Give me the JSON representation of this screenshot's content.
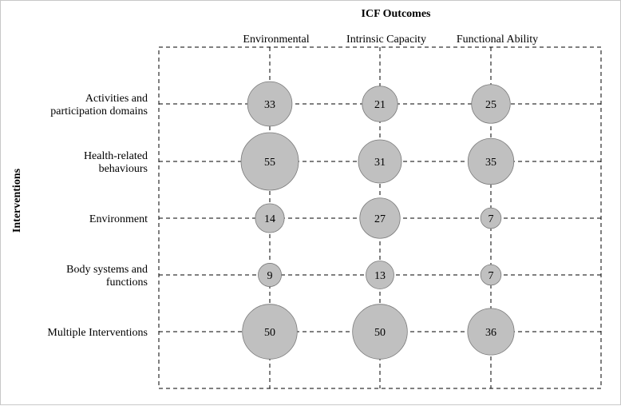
{
  "chart_data": {
    "type": "bubble",
    "title": "ICF Outcomes",
    "ylabel": "Interventions",
    "columns": [
      "Environmental",
      "Intrinsic Capacity",
      "Functional Ability"
    ],
    "rows": [
      [
        "Activities and",
        "participation domains"
      ],
      [
        "Health-related",
        "behaviours"
      ],
      [
        "Environment"
      ],
      [
        "Body systems and",
        "functions"
      ],
      [
        "Multiple Interventions"
      ]
    ],
    "values": [
      [
        33,
        21,
        25
      ],
      [
        55,
        31,
        35
      ],
      [
        14,
        27,
        7
      ],
      [
        9,
        13,
        7
      ],
      [
        50,
        50,
        36
      ]
    ],
    "bubble_color": "#c0c0c0",
    "grid": "dashed"
  }
}
